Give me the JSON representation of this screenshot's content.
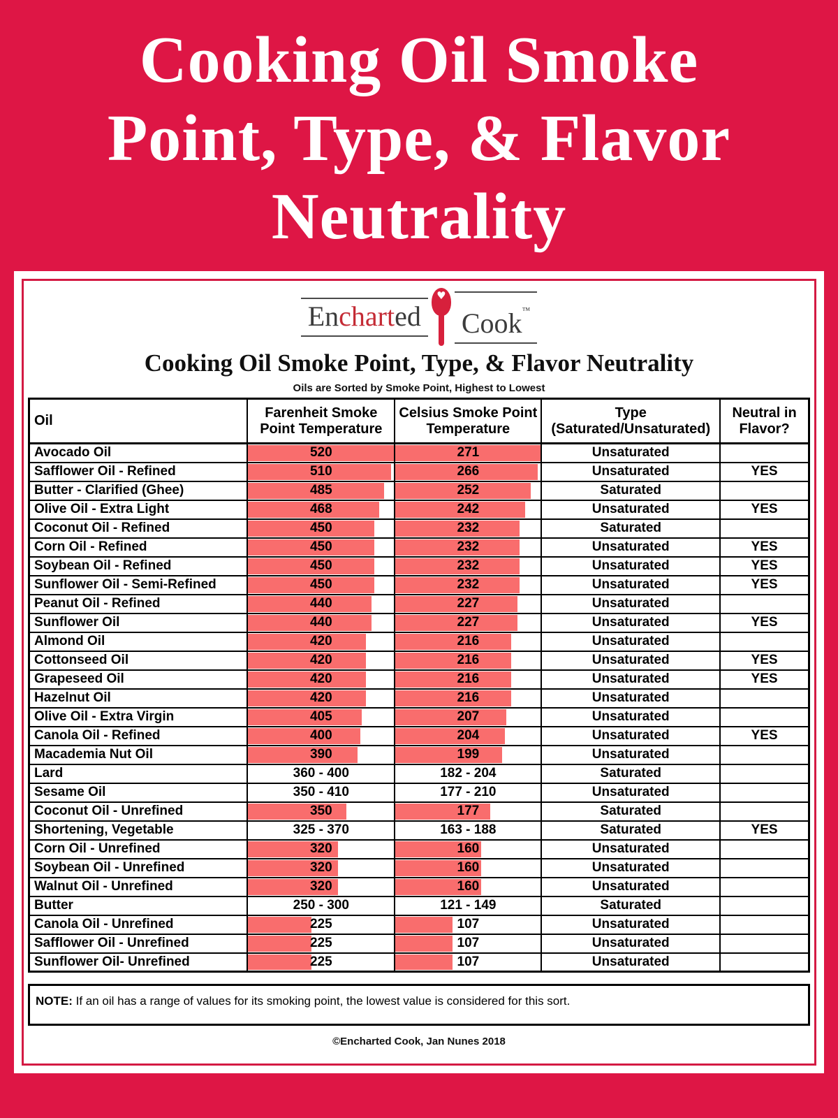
{
  "colors": {
    "background": "#DE1645",
    "panel_border": "#D41A43",
    "bar_fill": "#F96D6D",
    "logo_red": "#C42B35",
    "spoon_red": "#D7203C",
    "table_border": "#000000"
  },
  "header": {
    "title_lines": [
      "Cooking Oil Smoke",
      "Point, Type, & Flavor",
      "Neutrality"
    ]
  },
  "logo": {
    "part1": "En",
    "part2": "chart",
    "part3": "ed",
    "part4": "Cook",
    "trademark": "™",
    "heart": "♥"
  },
  "panel": {
    "subtitle": "Cooking Oil Smoke Point, Type, & Flavor Neutrality",
    "sort_note": "Oils are Sorted by Smoke Point, Highest to Lowest",
    "note_label": "NOTE:",
    "note_text": " If an oil has a range of values for its smoking point, the lowest value is considered for this sort.",
    "copyright": "©Encharted Cook, Jan Nunes 2018"
  },
  "chart_data": {
    "type": "table",
    "title": "Cooking Oil Smoke Point, Type, & Flavor Neutrality",
    "subtitle": "Oils are Sorted by Smoke Point, Highest to Lowest",
    "columns": [
      "Oil",
      "Farenheit Smoke Point Temperature",
      "Celsius Smoke Point Temperature",
      "Type (Saturated/Unsaturated)",
      "Neutral in Flavor?"
    ],
    "bar_max": {
      "fahrenheit": 520,
      "celsius": 271
    },
    "bar_note": "red bars behind single-value temperatures, width proportional to value; range values have no bar",
    "rows": [
      {
        "oil": "Avocado Oil",
        "f": "520",
        "c": "271",
        "type": "Unsaturated",
        "neutral": ""
      },
      {
        "oil": "Safflower Oil - Refined",
        "f": "510",
        "c": "266",
        "type": "Unsaturated",
        "neutral": "YES"
      },
      {
        "oil": "Butter - Clarified (Ghee)",
        "f": "485",
        "c": "252",
        "type": "Saturated",
        "neutral": ""
      },
      {
        "oil": "Olive Oil - Extra Light",
        "f": "468",
        "c": "242",
        "type": "Unsaturated",
        "neutral": "YES"
      },
      {
        "oil": "Coconut Oil - Refined",
        "f": "450",
        "c": "232",
        "type": "Saturated",
        "neutral": ""
      },
      {
        "oil": "Corn Oil - Refined",
        "f": "450",
        "c": "232",
        "type": "Unsaturated",
        "neutral": "YES"
      },
      {
        "oil": "Soybean Oil - Refined",
        "f": "450",
        "c": "232",
        "type": "Unsaturated",
        "neutral": "YES"
      },
      {
        "oil": "Sunflower Oil - Semi-Refined",
        "f": "450",
        "c": "232",
        "type": "Unsaturated",
        "neutral": "YES"
      },
      {
        "oil": "Peanut Oil - Refined",
        "f": "440",
        "c": "227",
        "type": "Unsaturated",
        "neutral": ""
      },
      {
        "oil": "Sunflower Oil",
        "f": "440",
        "c": "227",
        "type": "Unsaturated",
        "neutral": "YES"
      },
      {
        "oil": "Almond Oil",
        "f": "420",
        "c": "216",
        "type": "Unsaturated",
        "neutral": ""
      },
      {
        "oil": "Cottonseed Oil",
        "f": "420",
        "c": "216",
        "type": "Unsaturated",
        "neutral": "YES"
      },
      {
        "oil": "Grapeseed Oil",
        "f": "420",
        "c": "216",
        "type": "Unsaturated",
        "neutral": "YES"
      },
      {
        "oil": "Hazelnut Oil",
        "f": "420",
        "c": "216",
        "type": "Unsaturated",
        "neutral": ""
      },
      {
        "oil": "Olive Oil - Extra Virgin",
        "f": "405",
        "c": "207",
        "type": "Unsaturated",
        "neutral": ""
      },
      {
        "oil": "Canola Oil - Refined",
        "f": "400",
        "c": "204",
        "type": "Unsaturated",
        "neutral": "YES"
      },
      {
        "oil": "Macademia Nut Oil",
        "f": "390",
        "c": "199",
        "type": "Unsaturated",
        "neutral": ""
      },
      {
        "oil": "Lard",
        "f": "360 - 400",
        "c": "182 - 204",
        "type": "Saturated",
        "neutral": ""
      },
      {
        "oil": "Sesame Oil",
        "f": "350 - 410",
        "c": "177 - 210",
        "type": "Unsaturated",
        "neutral": ""
      },
      {
        "oil": "Coconut Oil - Unrefined",
        "f": "350",
        "c": "177",
        "type": "Saturated",
        "neutral": ""
      },
      {
        "oil": "Shortening, Vegetable",
        "f": "325 - 370",
        "c": "163 - 188",
        "type": "Saturated",
        "neutral": "YES"
      },
      {
        "oil": "Corn Oil - Unrefined",
        "f": "320",
        "c": "160",
        "type": "Unsaturated",
        "neutral": ""
      },
      {
        "oil": "Soybean Oil - Unrefined",
        "f": "320",
        "c": "160",
        "type": "Unsaturated",
        "neutral": ""
      },
      {
        "oil": "Walnut Oil - Unrefined",
        "f": "320",
        "c": "160",
        "type": "Unsaturated",
        "neutral": ""
      },
      {
        "oil": "Butter",
        "f": "250 - 300",
        "c": "121 - 149",
        "type": "Saturated",
        "neutral": ""
      },
      {
        "oil": "Canola Oil - Unrefined",
        "f": "225",
        "c": "107",
        "type": "Unsaturated",
        "neutral": ""
      },
      {
        "oil": "Safflower Oil - Unrefined",
        "f": "225",
        "c": "107",
        "type": "Unsaturated",
        "neutral": ""
      },
      {
        "oil": "Sunflower Oil- Unrefined",
        "f": "225",
        "c": "107",
        "type": "Unsaturated",
        "neutral": ""
      }
    ]
  }
}
